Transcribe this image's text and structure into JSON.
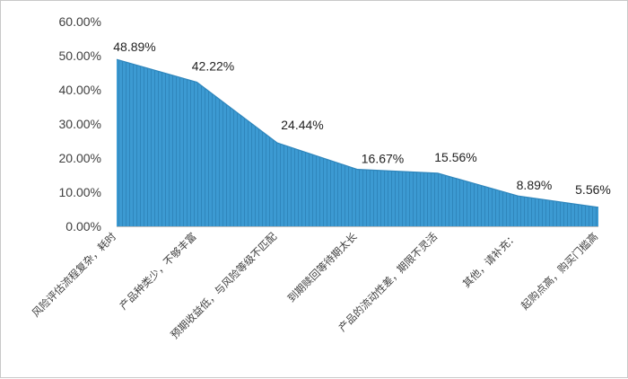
{
  "chart_data": {
    "type": "area",
    "categories": [
      "风险评估流程复杂，耗时",
      "产品种类少，不够丰富",
      "预期收益低，与风险等级不匹配",
      "到期赎回等待期太长",
      "产品的流动性差，期限不灵活",
      "其他，请补充：",
      "起购点高，购买门槛高"
    ],
    "values": [
      48.89,
      42.22,
      24.44,
      16.67,
      15.56,
      8.89,
      5.56
    ],
    "data_labels": [
      "48.89%",
      "42.22%",
      "24.44%",
      "16.67%",
      "15.56%",
      "8.89%",
      "5.56%"
    ],
    "yticks": [
      "0.00%",
      "10.00%",
      "20.00%",
      "30.00%",
      "40.00%",
      "50.00%",
      "60.00%"
    ],
    "ylim": [
      0,
      60
    ],
    "grid": false,
    "title": "",
    "xlabel": "",
    "ylabel": "",
    "colors": {
      "fill": "#3C9AD2",
      "stripe": "#2F86BC",
      "axis": "#BFBFBF"
    }
  }
}
